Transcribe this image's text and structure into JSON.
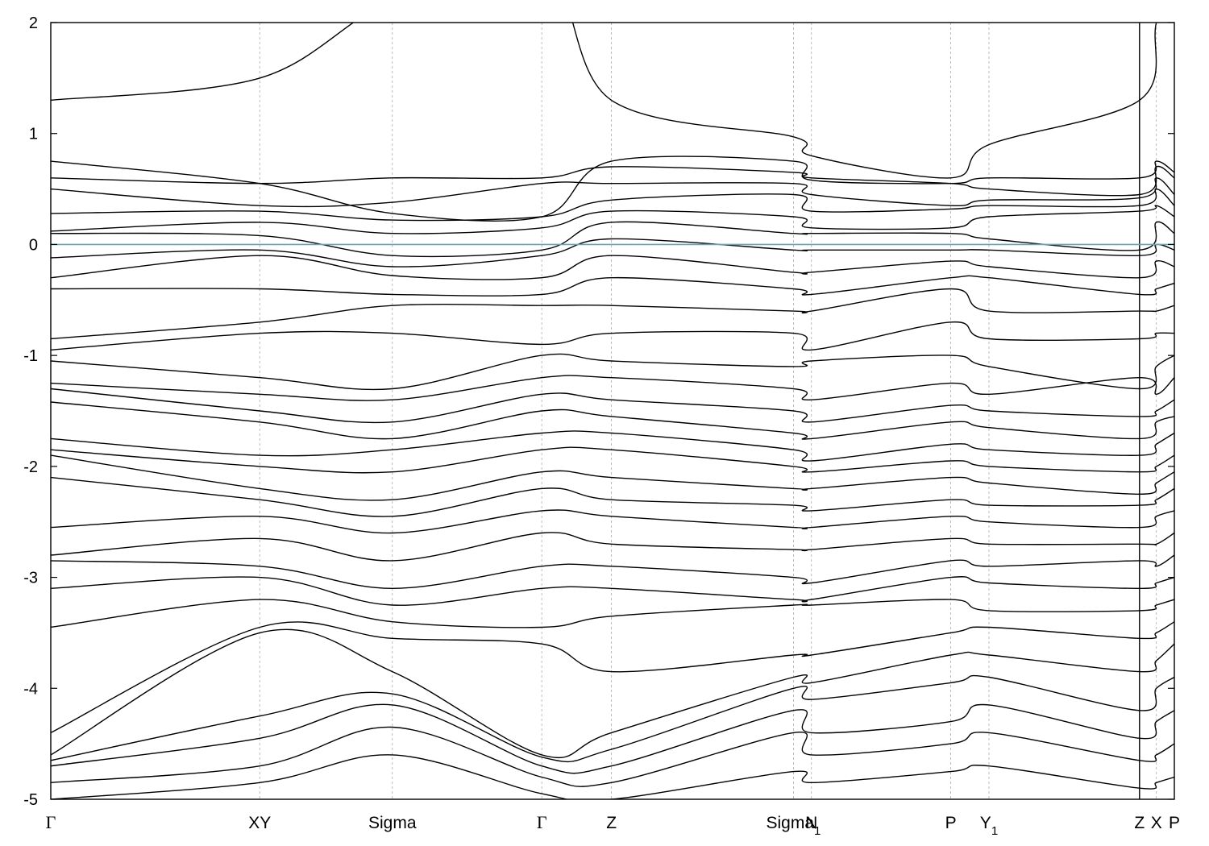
{
  "chart_data": {
    "type": "line",
    "title": "",
    "xlabel": "",
    "ylabel": "",
    "ylim": [
      -5,
      2
    ],
    "y_ticks": [
      "2",
      "1",
      "0",
      "-1",
      "-2",
      "-3",
      "-4",
      "-5"
    ],
    "fermi_level": 0,
    "fermi_color": "#5aa9b8",
    "band_color": "#000000",
    "k_points": [
      {
        "label": "Γ",
        "x": 0
      },
      {
        "label": "XY",
        "x": 0.186
      },
      {
        "label": "Sigma",
        "x": 0.304
      },
      {
        "label": "Γ",
        "x": 0.437
      },
      {
        "label": "Z",
        "x": 0.499
      },
      {
        "label": "Sigma",
        "sub": "1",
        "x": 0.661
      },
      {
        "label": "N",
        "x": 0.677
      },
      {
        "label": "P",
        "x": 0.801
      },
      {
        "label": "Y",
        "sub": "1",
        "x": 0.835
      },
      {
        "label": "Z",
        "x": 0.969
      },
      {
        "label": "X",
        "x": 0.984
      },
      {
        "label": "P",
        "x": 1.0
      }
    ],
    "bands": [
      [
        1.3,
        1.5,
        2.2,
        2.5,
        1.3,
        0.97,
        0.8,
        0.6,
        0.9,
        1.3,
        2.0,
        2.5
      ],
      [
        0.75,
        0.55,
        0.28,
        0.25,
        0.75,
        0.75,
        0.58,
        0.55,
        0.6,
        0.6,
        0.75,
        0.65
      ],
      [
        0.6,
        0.55,
        0.6,
        0.6,
        0.7,
        0.65,
        0.6,
        0.55,
        0.5,
        0.45,
        0.7,
        0.6
      ],
      [
        0.5,
        0.35,
        0.38,
        0.55,
        0.55,
        0.55,
        0.45,
        0.35,
        0.4,
        0.42,
        0.6,
        0.45
      ],
      [
        0.28,
        0.3,
        0.22,
        0.25,
        0.4,
        0.45,
        0.3,
        0.32,
        0.35,
        0.35,
        0.5,
        0.35
      ],
      [
        0.12,
        0.2,
        0.1,
        0.15,
        0.3,
        0.25,
        0.15,
        0.15,
        0.25,
        0.3,
        0.35,
        0.25
      ],
      [
        0.1,
        0.08,
        -0.1,
        -0.05,
        0.2,
        0.1,
        0.1,
        0.1,
        0.05,
        -0.05,
        0.2,
        0.1
      ],
      [
        -0.12,
        -0.05,
        -0.2,
        -0.1,
        0.05,
        -0.05,
        -0.05,
        -0.05,
        -0.05,
        -0.1,
        0.0,
        -0.05
      ],
      [
        -0.3,
        -0.1,
        -0.28,
        -0.3,
        -0.1,
        -0.25,
        -0.25,
        -0.15,
        -0.2,
        -0.3,
        -0.15,
        -0.2
      ],
      [
        -0.4,
        -0.4,
        -0.45,
        -0.45,
        -0.3,
        -0.4,
        -0.45,
        -0.3,
        -0.3,
        -0.45,
        -0.4,
        -0.35
      ],
      [
        -0.85,
        -0.7,
        -0.55,
        -0.55,
        -0.55,
        -0.6,
        -0.6,
        -0.4,
        -0.6,
        -0.6,
        -0.6,
        -0.55
      ],
      [
        -0.95,
        -0.8,
        -0.8,
        -0.9,
        -0.8,
        -0.8,
        -0.95,
        -0.7,
        -0.85,
        -0.85,
        -0.8,
        -0.8
      ],
      [
        -1.05,
        -1.2,
        -1.3,
        -1.0,
        -1.05,
        -1.1,
        -1.05,
        -1.0,
        -1.1,
        -1.3,
        -1.1,
        -1.0
      ],
      [
        -1.25,
        -1.35,
        -1.4,
        -1.2,
        -1.2,
        -1.3,
        -1.4,
        -1.25,
        -1.35,
        -1.2,
        -1.35,
        -1.2
      ],
      [
        -1.3,
        -1.5,
        -1.6,
        -1.35,
        -1.4,
        -1.5,
        -1.6,
        -1.45,
        -1.5,
        -1.55,
        -1.5,
        -1.4
      ],
      [
        -1.42,
        -1.6,
        -1.75,
        -1.5,
        -1.55,
        -1.7,
        -1.75,
        -1.6,
        -1.65,
        -1.75,
        -1.6,
        -1.55
      ],
      [
        -1.75,
        -1.9,
        -1.85,
        -1.7,
        -1.7,
        -1.85,
        -1.95,
        -1.8,
        -1.85,
        -1.9,
        -1.8,
        -1.7
      ],
      [
        -1.85,
        -2.0,
        -2.05,
        -1.85,
        -1.85,
        -2.0,
        -2.05,
        -1.95,
        -2.0,
        -2.05,
        -2.0,
        -1.9
      ],
      [
        -1.9,
        -2.2,
        -2.3,
        -2.05,
        -2.1,
        -2.2,
        -2.2,
        -2.1,
        -2.15,
        -2.25,
        -2.15,
        -2.05
      ],
      [
        -2.1,
        -2.3,
        -2.45,
        -2.2,
        -2.3,
        -2.35,
        -2.4,
        -2.3,
        -2.35,
        -2.35,
        -2.3,
        -2.2
      ],
      [
        -2.55,
        -2.45,
        -2.6,
        -2.4,
        -2.45,
        -2.55,
        -2.55,
        -2.45,
        -2.5,
        -2.55,
        -2.45,
        -2.4
      ],
      [
        -2.8,
        -2.65,
        -2.85,
        -2.6,
        -2.7,
        -2.75,
        -2.75,
        -2.65,
        -2.7,
        -2.7,
        -2.7,
        -2.6
      ],
      [
        -2.85,
        -2.9,
        -3.1,
        -2.9,
        -2.9,
        -3.0,
        -3.05,
        -2.85,
        -2.9,
        -2.85,
        -2.9,
        -2.8
      ],
      [
        -3.1,
        -3.0,
        -3.25,
        -3.1,
        -3.1,
        -3.2,
        -3.2,
        -3.0,
        -3.05,
        -3.1,
        -3.05,
        -3.0
      ],
      [
        -3.45,
        -3.2,
        -3.4,
        -3.45,
        -3.35,
        -3.25,
        -3.25,
        -3.2,
        -3.3,
        -3.3,
        -3.25,
        -3.2
      ],
      [
        -4.4,
        -3.45,
        -3.55,
        -3.6,
        -3.85,
        -3.7,
        -3.7,
        -3.5,
        -3.45,
        -3.55,
        -3.5,
        -3.4
      ],
      [
        -4.6,
        -3.5,
        -3.85,
        -4.6,
        -4.4,
        -3.9,
        -3.95,
        -3.7,
        -3.7,
        -3.85,
        -3.75,
        -3.6
      ],
      [
        -4.65,
        -4.25,
        -4.05,
        -4.62,
        -4.55,
        -4.0,
        -4.1,
        -3.95,
        -3.9,
        -4.2,
        -4.0,
        -3.9
      ],
      [
        -4.7,
        -4.45,
        -4.15,
        -4.7,
        -4.7,
        -4.2,
        -4.4,
        -4.3,
        -4.15,
        -4.45,
        -4.3,
        -4.2
      ],
      [
        -4.85,
        -4.7,
        -4.35,
        -4.8,
        -4.85,
        -4.4,
        -4.6,
        -4.5,
        -4.4,
        -4.65,
        -4.6,
        -4.5
      ],
      [
        -5.0,
        -4.85,
        -4.6,
        -4.95,
        -5.0,
        -4.75,
        -4.85,
        -4.75,
        -4.7,
        -4.9,
        -4.85,
        -4.8
      ]
    ]
  }
}
